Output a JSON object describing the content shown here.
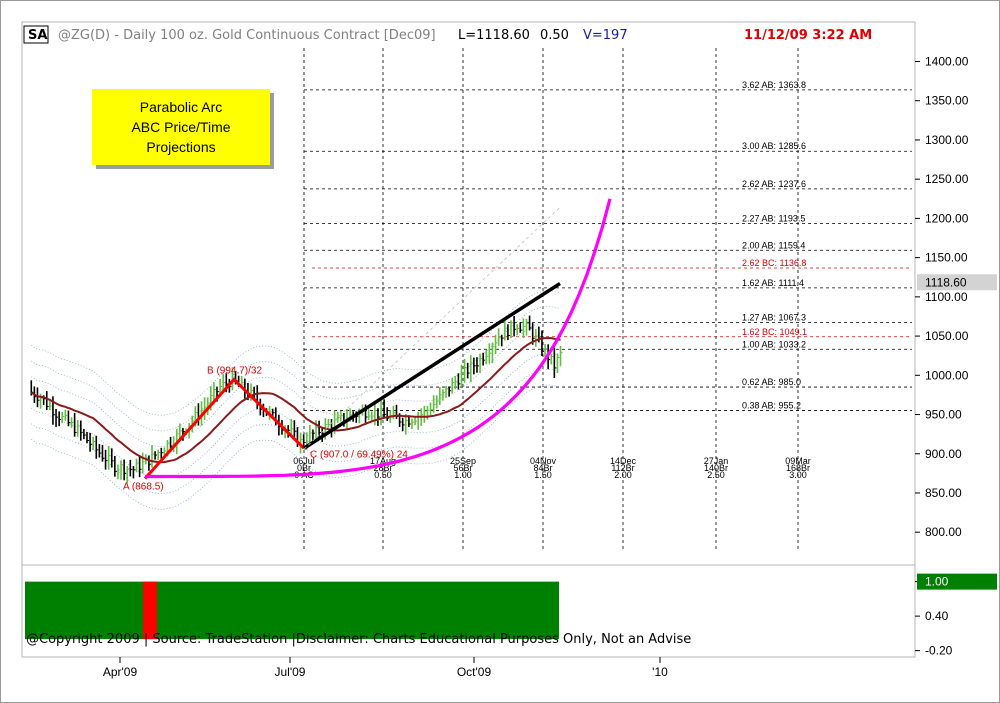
{
  "header": {
    "symbol_badge": "SA",
    "title": "@ZG(D) - Daily  100 oz. Gold Continuous Contract [Dec09]",
    "last": "L=1118.60",
    "change": "0.50",
    "volume": "V=197",
    "datetime": "11/12/09 3:22 AM"
  },
  "callout": {
    "line1": "Parabolic Arc",
    "line2": "ABC Price/Time",
    "line3": "Projections"
  },
  "copyright": "@Copyright 2009 | Source: TradeStation |Disclaimer: Charts Educational Purposes Only, Not an Advise",
  "colors": {
    "up_bar": "#5fbf3f",
    "down_bar": "#000000",
    "abc": "#ff0000",
    "arc": "#ff00ff",
    "trend": "#000000",
    "ma": "#8b1a1a",
    "indicator": "#008000",
    "indicator_alert": "#ff0000"
  },
  "chart_data": [
    {
      "type": "line",
      "title": "",
      "price_axis": {
        "ticks": [
          "1400.00",
          "1350.00",
          "1300.00",
          "1250.00",
          "1200.00",
          "1150.00",
          "1100.00",
          "1050.00",
          "1000.00",
          "950.00",
          "900.00",
          "850.00",
          "800.00"
        ],
        "ylim": [
          775,
          1425
        ],
        "last_price_label": "1118.60"
      },
      "x_axis": {
        "labels": [
          "Apr'09",
          "Jul'09",
          "Oct'09",
          "'10"
        ]
      },
      "abc_points": [
        {
          "name": "A",
          "label": "A (868.5)",
          "value": 868.5
        },
        {
          "name": "B",
          "label": "B (994.7)/32",
          "value": 994.7
        },
        {
          "name": "C",
          "label": "C (907.0 / 69.49%) 24",
          "value": 907.0
        }
      ],
      "price_projections": [
        {
          "label": "3.62 AB: 1363.8",
          "value": 1363.8,
          "color": "black"
        },
        {
          "label": "3.00 AB: 1285.6",
          "value": 1285.6,
          "color": "black"
        },
        {
          "label": "2.62 AB: 1237.6",
          "value": 1237.6,
          "color": "black"
        },
        {
          "label": "2.27 AB: 1193.5",
          "value": 1193.5,
          "color": "black"
        },
        {
          "label": "2.00 AB: 1159.4",
          "value": 1159.4,
          "color": "black"
        },
        {
          "label": "2.62 BC: 1136.8",
          "value": 1136.8,
          "color": "red"
        },
        {
          "label": "1.62 AB: 1111.4",
          "value": 1111.4,
          "color": "black"
        },
        {
          "label": "1.27 AB: 1067.3",
          "value": 1067.3,
          "color": "black"
        },
        {
          "label": "1.62 BC: 1049.1",
          "value": 1049.1,
          "color": "red"
        },
        {
          "label": "1.00 AB: 1033.2",
          "value": 1033.2,
          "color": "black"
        },
        {
          "label": "0.62 AB: 985.0",
          "value": 985.0,
          "color": "black"
        },
        {
          "label": "0.38 AB: 955.2",
          "value": 955.2,
          "color": "black"
        }
      ],
      "time_projections": [
        {
          "date": "06Jul",
          "bars": "0Br",
          "ratio": "0 AC"
        },
        {
          "date": "17Aug",
          "bars": "28Br",
          "ratio": "0.50"
        },
        {
          "date": "25Sep",
          "bars": "56Br",
          "ratio": "1.00"
        },
        {
          "date": "04Nov",
          "bars": "84Br",
          "ratio": "1.50"
        },
        {
          "date": "14Dec",
          "bars": "112Br",
          "ratio": "2.00"
        },
        {
          "date": "27Jan",
          "bars": "140Br",
          "ratio": "2.50"
        },
        {
          "date": "09Mar",
          "bars": "168Br",
          "ratio": "3.00"
        }
      ]
    },
    {
      "type": "bar",
      "title": "",
      "ticks": [
        "1.00",
        "0.40",
        "-0.20"
      ],
      "ylim": [
        -0.35,
        1.15
      ],
      "current_value_label": "1.00",
      "current_value": 1.0
    }
  ]
}
